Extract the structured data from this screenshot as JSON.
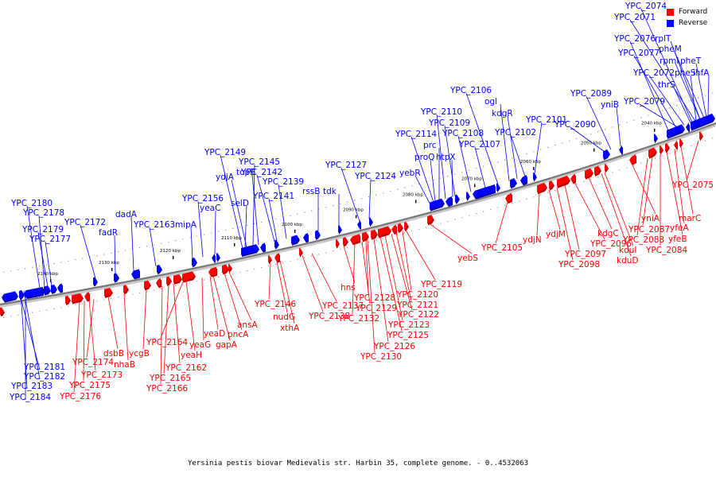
{
  "legend": {
    "forward": "Forward",
    "reverse": "Reverse",
    "forward_color": "#ff0000",
    "reverse_color": "#0000ff"
  },
  "caption": "Yersinia pestis biovar Medievalis str. Harbin 35, complete genome. - 0..4532063",
  "ticks": [
    "2040 kbp",
    "2050 kbp",
    "2060 kbp",
    "2070 kbp",
    "2080 kbp",
    "2090 kbp",
    "2100 kbp",
    "2110 kbp",
    "2120 kbp",
    "2130 kbp",
    "2140 kbp"
  ],
  "reverse_labels": [
    "YPC_2074",
    "YPC_2071",
    "YPC_2076",
    "rplT",
    "pheM",
    "YPC_2077",
    "rpmI",
    "pheT",
    "YPC_2072",
    "pheS",
    "ihfA",
    "thrS",
    "YPC_2079",
    "YPC_2089",
    "yniB",
    "YPC_2090",
    "YPC_2106",
    "ogl",
    "kdgR",
    "YPC_2101",
    "YPC_2102",
    "YPC_2110",
    "YPC_2109",
    "YPC_2108",
    "YPC_2107",
    "YPC_2114",
    "prc",
    "proQ",
    "htpX",
    "yebR",
    "YPC_2127",
    "YPC_2124",
    "rssB",
    "tdk",
    "YPC_2149",
    "YPC_2145",
    "ydjA",
    "topB",
    "YPC_2142",
    "YPC_2139",
    "YPC_2141",
    "YPC_2156",
    "yeaC",
    "selD",
    "mipA",
    "YPC_2163",
    "dadA",
    "YPC_2172",
    "fadR",
    "YPC_2180",
    "YPC_2178",
    "YPC_2179",
    "YPC_2177",
    "YPC_2181",
    "YPC_2182",
    "YPC_2183",
    "YPC_2184"
  ],
  "forward_labels": [
    "YPC_2075",
    "marC",
    "yfeA",
    "yfeB",
    "YPC_2084",
    "yniA",
    "YPC_2087",
    "YPC_2088",
    "kdgC",
    "kduI",
    "kduD",
    "YPC_2096",
    "YPC_2097",
    "YPC_2098",
    "ydjM",
    "ydjN",
    "YPC_2105",
    "yebS",
    "YPC_2119",
    "YPC_2120",
    "YPC_2121",
    "YPC_2122",
    "YPC_2123",
    "YPC_2125",
    "YPC_2126",
    "YPC_2130",
    "YPC_2128",
    "YPC_2129",
    "YPC_2132",
    "hns",
    "YPC_2137",
    "YPC_2138",
    "YPC_2146",
    "nudG",
    "xthA",
    "ansA",
    "pncA",
    "gapA",
    "yeaD",
    "yeaG",
    "yeaH",
    "YPC_2164",
    "YPC_2162",
    "YPC_2165",
    "YPC_2166",
    "ycgB",
    "nhaB",
    "dsbB",
    "YPC_2174",
    "YPC_2173",
    "YPC_2175",
    "YPC_2176"
  ]
}
